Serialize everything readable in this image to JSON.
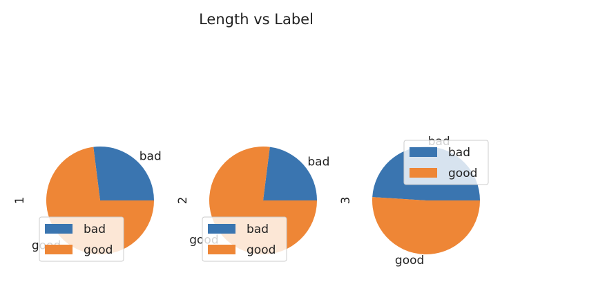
{
  "chart_data": {
    "type": "pie",
    "title": "Length vs Label",
    "categories": [
      "bad",
      "good"
    ],
    "colors": {
      "bad": "#3a75b0",
      "good": "#ee8636"
    },
    "legend_placement": "lower-left",
    "subplots": [
      {
        "ylabel": "1",
        "values": [
          0.27,
          0.73
        ],
        "legend_placement": "lower-left"
      },
      {
        "ylabel": "2",
        "values": [
          0.23,
          0.77
        ],
        "legend_placement": "lower-left"
      },
      {
        "ylabel": "3",
        "values": [
          0.49,
          0.51
        ],
        "legend_placement": "upper-right"
      }
    ]
  }
}
